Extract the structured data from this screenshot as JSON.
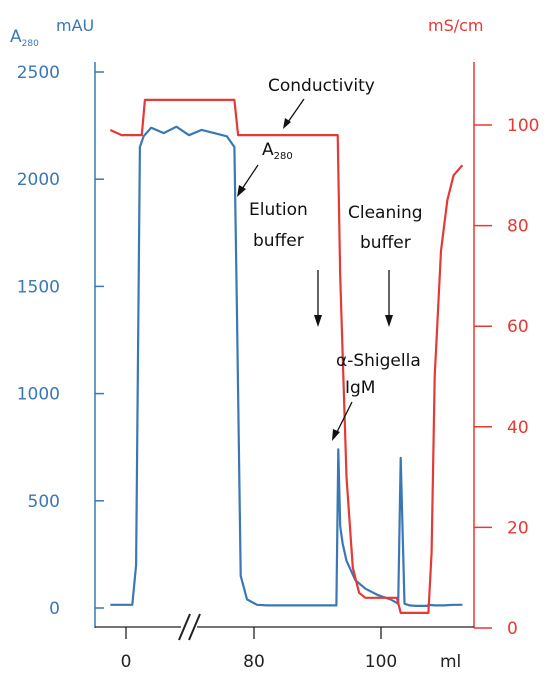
{
  "chart_data": {
    "type": "line",
    "y_left": {
      "label": "A",
      "label_sub": "280",
      "unit": "mAU",
      "ylim": [
        0,
        2500
      ],
      "ticks": [
        "0",
        "500",
        "1000",
        "1500",
        "2000",
        "2500"
      ],
      "color": "#3a78b5"
    },
    "y_right": {
      "unit": "mS/cm",
      "ylim": [
        0,
        100
      ],
      "ticks": [
        "0",
        "20",
        "40",
        "60",
        "80",
        "100"
      ],
      "color": "#e53935"
    },
    "x_axis": {
      "unit": "ml",
      "ticks": [
        "0",
        "80",
        "100"
      ],
      "break": true
    },
    "series": [
      {
        "name": "A280",
        "axis": "left",
        "color": "#3a78b5",
        "x": [
          -2.5,
          -0.7,
          1.0,
          1.6,
          2.2,
          2.8,
          4.0,
          6.0,
          8.0,
          10.0,
          12.0,
          14.0,
          16.0,
          17.2,
          17.6,
          18.2,
          19.2,
          20.8,
          22.4,
          24.0,
          26.0,
          28.0,
          30.0,
          32.0,
          33.4,
          33.7,
          34.0,
          34.4,
          35.0,
          36.4,
          38.0,
          40.0,
          42.0,
          43.2,
          43.6,
          44.2,
          45.0,
          46.0,
          47.0,
          47.8,
          48.0,
          49.0,
          50.5,
          52.0,
          53.4
        ],
        "values": [
          15,
          15,
          15,
          200,
          2150,
          2200,
          2240,
          2215,
          2245,
          2205,
          2230,
          2215,
          2200,
          2150,
          1400,
          150,
          40,
          15,
          12,
          12,
          12,
          12,
          12,
          12,
          12,
          740,
          380,
          300,
          220,
          130,
          90,
          60,
          40,
          20,
          700,
          20,
          12,
          10,
          10,
          10,
          15,
          12,
          12,
          15,
          15
        ]
      },
      {
        "name": "Conductivity",
        "axis": "right",
        "color": "#e53935",
        "x": [
          -2.5,
          -0.7,
          2.5,
          3.0,
          17.2,
          17.8,
          33.6,
          34.0,
          35.0,
          36.0,
          37.0,
          38.0,
          43.0,
          43.6,
          48.0,
          48.5,
          49.0,
          50.0,
          51.0,
          52.0,
          53.4
        ],
        "values": [
          99,
          98,
          98,
          105,
          105,
          98,
          98,
          70,
          30,
          12,
          7,
          6,
          6,
          3,
          3,
          15,
          50,
          75,
          85,
          90,
          92
        ]
      }
    ],
    "annotations": {
      "conductivity": "Conductivity",
      "a280": "A",
      "a280_sub": "280",
      "elution_1": "Elution",
      "elution_2": "buffer",
      "cleaning_1": "Cleaning",
      "cleaning_2": "buffer",
      "igm_1": "α-Shigella",
      "igm_2": "IgM"
    },
    "grid": false,
    "legend": "none"
  }
}
